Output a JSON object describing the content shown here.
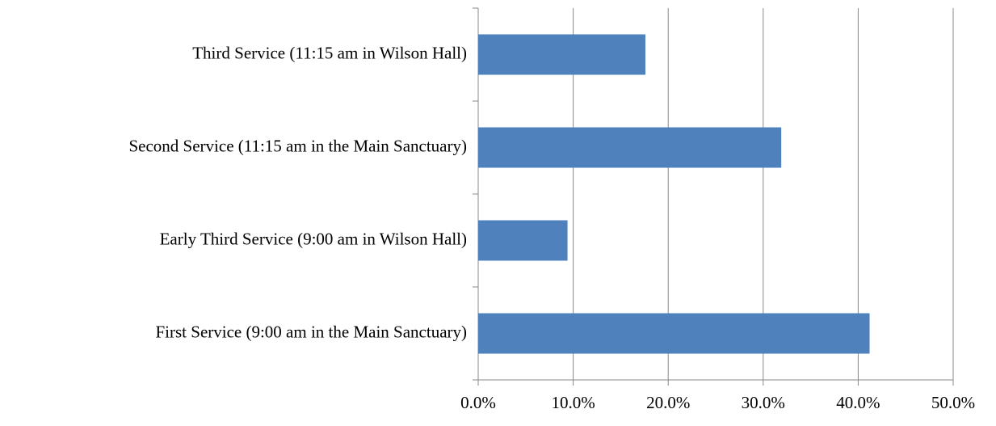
{
  "chart_data": {
    "type": "bar",
    "orientation": "horizontal",
    "categories": [
      "First Service (9:00 am in the Main Sanctuary)",
      "Early Third Service (9:00 am in Wilson Hall)",
      "Second Service (11:15 am in the Main Sanctuary)",
      "Third Service (11:15 am in Wilson Hall)"
    ],
    "values": [
      41.2,
      9.4,
      31.9,
      17.6
    ],
    "color": "#4f81bd",
    "xlim": [
      0,
      50
    ],
    "xticks": [
      {
        "value": 0,
        "label": "0.0%"
      },
      {
        "value": 10,
        "label": "10.0%"
      },
      {
        "value": 20,
        "label": "20.0%"
      },
      {
        "value": 30,
        "label": "30.0%"
      },
      {
        "value": 40,
        "label": "40.0%"
      },
      {
        "value": 50,
        "label": "50.0%"
      }
    ],
    "grid": true
  }
}
